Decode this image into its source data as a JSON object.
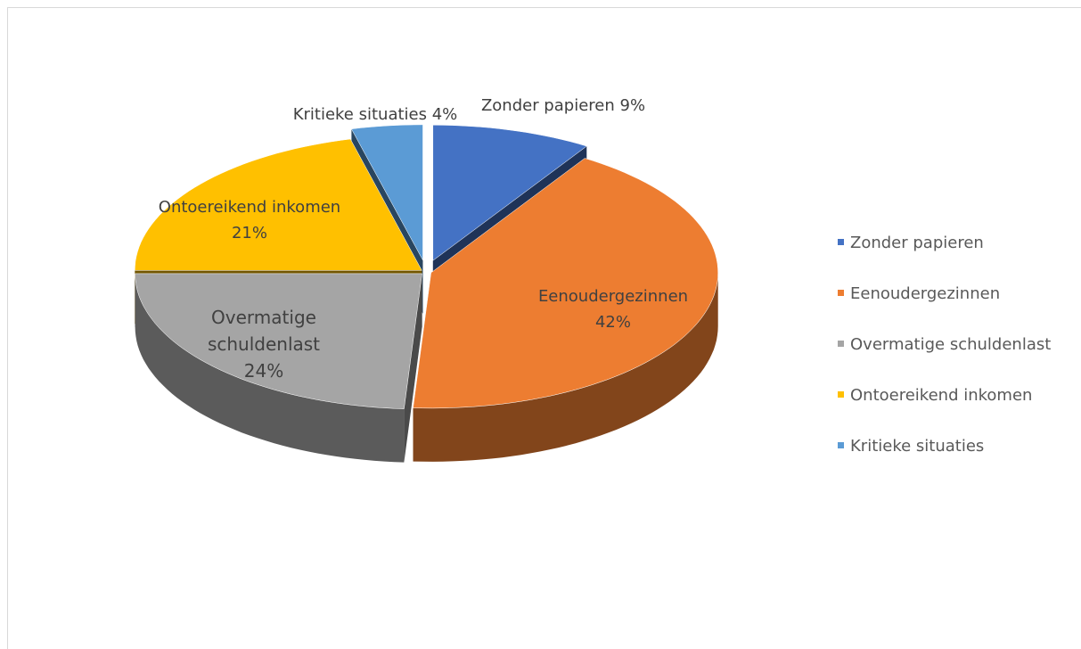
{
  "chart_data": {
    "type": "pie",
    "categories": [
      "Zonder papieren",
      "Eenoudergezinnen",
      "Overmatige schuldenlast",
      "Ontoereikend inkomen",
      "Kritieke situaties"
    ],
    "values": [
      9,
      42,
      24,
      21,
      4
    ],
    "value_labels": [
      "9%",
      "42%",
      "24%",
      "21%",
      "4%"
    ],
    "colors": [
      "#4472c4",
      "#ed7d31",
      "#a5a5a5",
      "#ffc000",
      "#5b9bd5"
    ],
    "legend": "right"
  }
}
